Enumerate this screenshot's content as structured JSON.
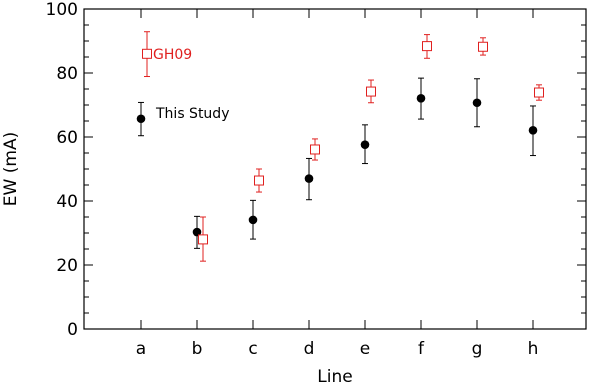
{
  "chart_data": {
    "type": "scatter",
    "xlabel": "Line",
    "ylabel": "EW (mA)",
    "categories": [
      "a",
      "b",
      "c",
      "d",
      "e",
      "f",
      "g",
      "h"
    ],
    "ylim": [
      0,
      100
    ],
    "y_ticks": [
      0,
      20,
      40,
      60,
      80,
      100
    ],
    "grid": false,
    "series": [
      {
        "name": "This Study",
        "color": "#000000",
        "marker": "filled-circle",
        "points": [
          {
            "x": "a",
            "y": 65.7,
            "err_low": 5.3,
            "err_high": 5.1
          },
          {
            "x": "b",
            "y": 30.3,
            "err_low": 5.1,
            "err_high": 4.9
          },
          {
            "x": "c",
            "y": 34.1,
            "err_low": 6.0,
            "err_high": 6.1
          },
          {
            "x": "d",
            "y": 47.0,
            "err_low": 6.6,
            "err_high": 6.3
          },
          {
            "x": "e",
            "y": 57.6,
            "err_low": 5.9,
            "err_high": 6.2
          },
          {
            "x": "f",
            "y": 72.1,
            "err_low": 6.5,
            "err_high": 6.3
          },
          {
            "x": "g",
            "y": 70.7,
            "err_low": 7.5,
            "err_high": 7.5
          },
          {
            "x": "h",
            "y": 62.1,
            "err_low": 7.9,
            "err_high": 7.6
          }
        ]
      },
      {
        "name": "GH09",
        "color": "#e0201f",
        "marker": "open-square",
        "points": [
          {
            "x": "a",
            "y": 86.0,
            "err_low": 7.1,
            "err_high": 6.9
          },
          {
            "x": "b",
            "y": 28.0,
            "err_low": 6.8,
            "err_high": 7.0
          },
          {
            "x": "c",
            "y": 46.4,
            "err_low": 3.6,
            "err_high": 3.6
          },
          {
            "x": "d",
            "y": 56.1,
            "err_low": 3.3,
            "err_high": 3.3
          },
          {
            "x": "e",
            "y": 74.2,
            "err_low": 3.5,
            "err_high": 3.6
          },
          {
            "x": "f",
            "y": 88.4,
            "err_low": 3.8,
            "err_high": 3.6
          },
          {
            "x": "g",
            "y": 88.2,
            "err_low": 2.6,
            "err_high": 2.8
          },
          {
            "x": "h",
            "y": 73.9,
            "err_low": 2.4,
            "err_high": 2.4
          }
        ]
      }
    ],
    "legend": [
      {
        "label": "GH09",
        "series": 1
      },
      {
        "label": "This Study",
        "series": 0
      }
    ]
  }
}
